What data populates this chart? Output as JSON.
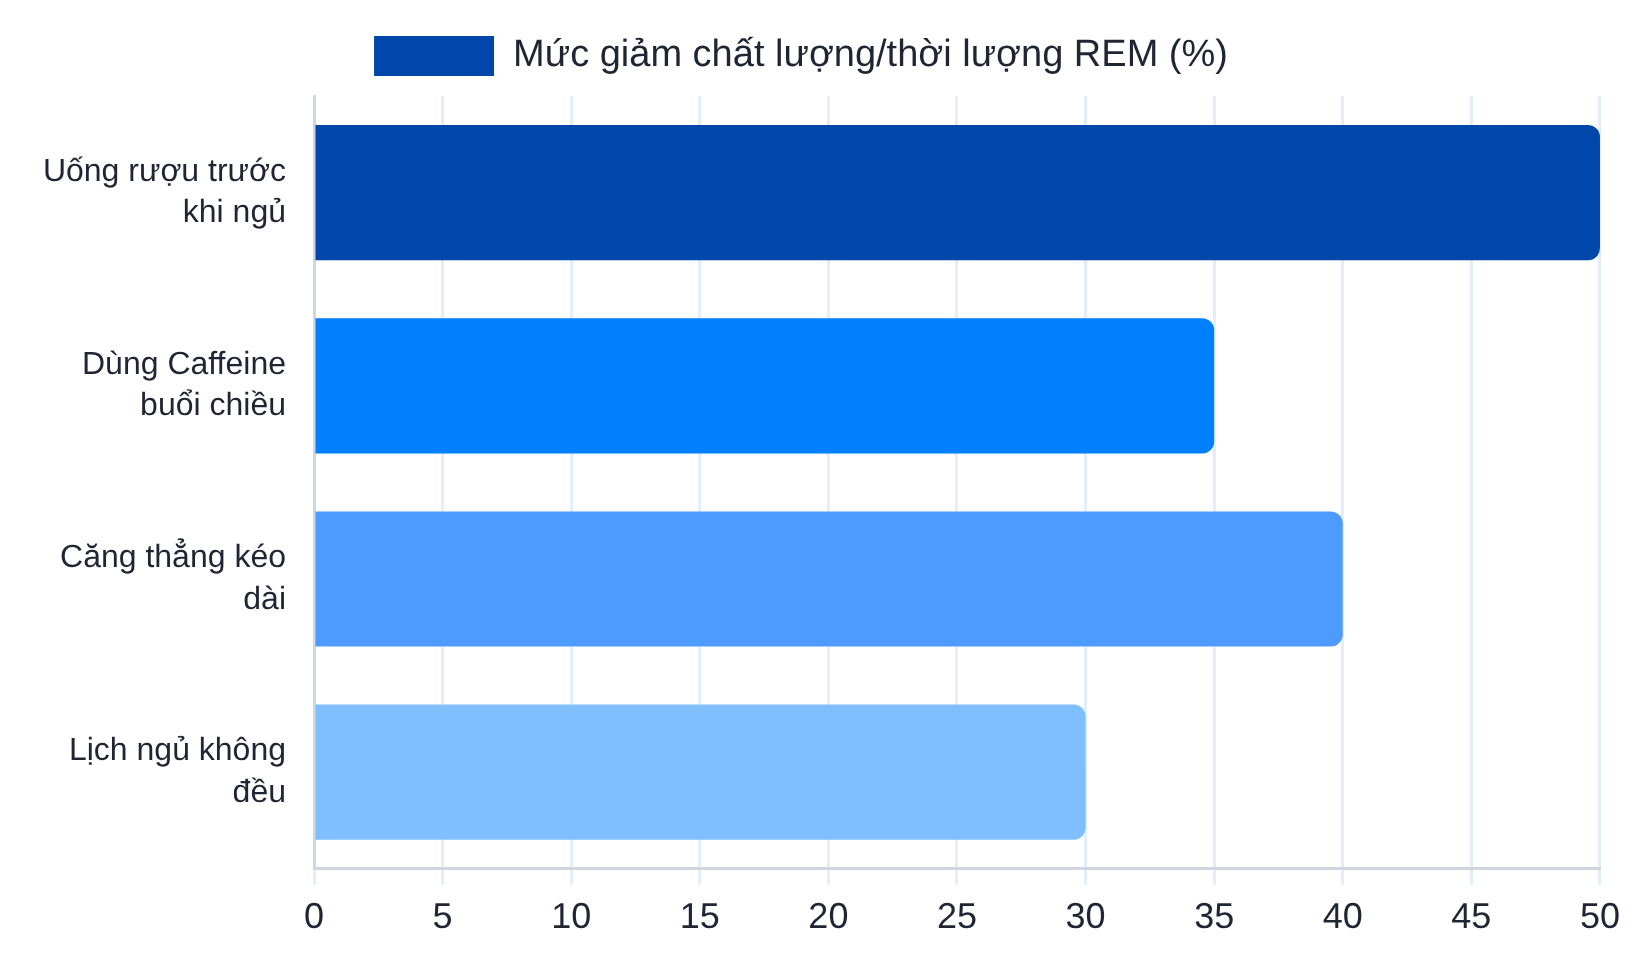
{
  "chart_data": {
    "type": "bar",
    "orientation": "horizontal",
    "categories": [
      "Uống rượu trước khi ngủ",
      "Dùng Caffeine buổi chiều",
      "Căng thẳng kéo dài",
      "Lịch ngủ không đều"
    ],
    "series": [
      {
        "name": "Mức giảm chất lượng/thời lượng REM (%)",
        "color": "#0047ab",
        "colors": [
          "#0047ab",
          "#0080ff",
          "#4d9bff",
          "#80bfff"
        ],
        "values": [
          50,
          35,
          40,
          30
        ]
      }
    ],
    "xlim": [
      0,
      50
    ],
    "xticks": [
      0,
      5,
      10,
      15,
      20,
      25,
      30,
      35,
      40,
      45,
      50
    ],
    "grid": "x",
    "legend": "top"
  }
}
